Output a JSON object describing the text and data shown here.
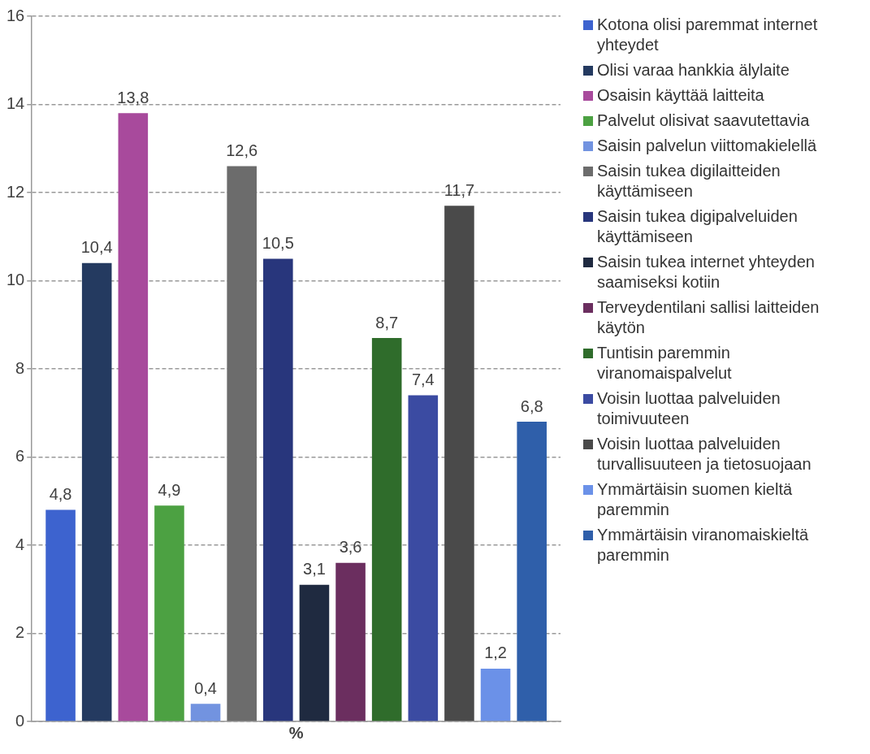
{
  "chart_data": {
    "type": "bar",
    "categories": [
      "%"
    ],
    "ylim": [
      0,
      16
    ],
    "yticks": [
      0,
      2,
      4,
      6,
      8,
      10,
      12,
      14,
      16
    ],
    "grid": "y",
    "legend": "right",
    "series": [
      {
        "name": "Kotona olisi paremmat internet yhteydet",
        "color": "#3d63cf",
        "values": [
          4.8
        ],
        "value_labels": [
          "4,8"
        ]
      },
      {
        "name": "Olisi varaa hankkia älylaite",
        "color": "#243a60",
        "values": [
          10.4
        ],
        "value_labels": [
          "10,4"
        ]
      },
      {
        "name": "Osaisin käyttää laitteita",
        "color": "#a84a9c",
        "values": [
          13.8
        ],
        "value_labels": [
          "13,8"
        ]
      },
      {
        "name": "Palvelut olisivat saavutettavia",
        "color": "#4ca142",
        "values": [
          4.9
        ],
        "value_labels": [
          "4,9"
        ]
      },
      {
        "name": "Saisin palvelun viittomakielellä",
        "color": "#7293e0",
        "values": [
          0.4
        ],
        "value_labels": [
          "0,4"
        ]
      },
      {
        "name": "Saisin tukea digilaitteiden käyttämiseen",
        "color": "#6c6c6c",
        "values": [
          12.6
        ],
        "value_labels": [
          "12,6"
        ]
      },
      {
        "name": "Saisin tukea digipalveluiden käyttämiseen",
        "color": "#28367c",
        "values": [
          10.5
        ],
        "value_labels": [
          "10,5"
        ]
      },
      {
        "name": "Saisin tukea internet yhteyden saamiseksi kotiin",
        "color": "#1f2a40",
        "values": [
          3.1
        ],
        "value_labels": [
          "3,1"
        ]
      },
      {
        "name": "Terveydentilani sallisi laitteiden käytön",
        "color": "#6b2e5f",
        "values": [
          3.6
        ],
        "value_labels": [
          "3,6"
        ]
      },
      {
        "name": "Tuntisin paremmin viranomaispalvelut",
        "color": "#2f6c2b",
        "values": [
          8.7
        ],
        "value_labels": [
          "8,7"
        ]
      },
      {
        "name": "Voisin luottaa palveluiden toimivuuteen",
        "color": "#3b4ba2",
        "values": [
          7.4
        ],
        "value_labels": [
          "7,4"
        ]
      },
      {
        "name": "Voisin luottaa palveluiden turvallisuuteen ja tietosuojaan",
        "color": "#4a4a4a",
        "values": [
          11.7
        ],
        "value_labels": [
          "11,7"
        ]
      },
      {
        "name": "Ymmärtäisin suomen kieltä paremmin",
        "color": "#6b91e8",
        "values": [
          1.2
        ],
        "value_labels": [
          "1,2"
        ]
      },
      {
        "name": "Ymmärtäisin viranomaiskieltä paremmin",
        "color": "#2f5faa",
        "values": [
          6.8
        ],
        "value_labels": [
          "6,8"
        ]
      }
    ]
  }
}
